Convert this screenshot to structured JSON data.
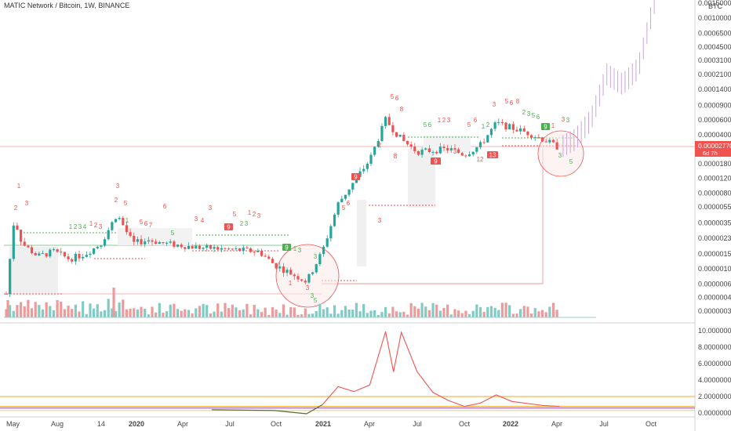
{
  "header": {
    "symbol_title": "MATIC Network / Bitcoin, 1W, BINANCE",
    "currency": "BTC"
  },
  "price_tag": {
    "value": "0.00002770",
    "countdown": "6d 7h"
  },
  "colors": {
    "up": "#26a69a",
    "down": "#ef5350",
    "projection": "#c9a6e0",
    "setup_buy": "#4caf50",
    "setup_sell": "#ef5350",
    "price_tag_bg": "#ef5350"
  },
  "chart_data": [
    {
      "type": "candlestick",
      "title": "MATIC Network / Bitcoin, 1W, BINANCE",
      "y_scale": "log",
      "y_ticks": [
        "0.00150000",
        "0.00100000",
        "0.00065000",
        "0.00045000",
        "0.00031000",
        "0.00021000",
        "0.00014000",
        "0.00009000",
        "0.00006000",
        "0.00004000",
        "0.00002770",
        "0.00001800",
        "0.00001200",
        "0.00000800",
        "0.00000550",
        "0.00000350",
        "0.00000230",
        "0.00000150",
        "0.00000100",
        "0.00000065",
        "0.00000045",
        "0.00000031"
      ],
      "x_ticks": [
        "May",
        "Aug",
        "14",
        "2020",
        "Apr",
        "Jul",
        "Oct",
        "2021",
        "Apr",
        "Jul",
        "Oct",
        "2022",
        "Apr",
        "Jul",
        "Oct"
      ],
      "close_series": [
        {
          "t": "2019-05",
          "close": 5e-07
        },
        {
          "t": "2019-05b",
          "close": 4e-06
        },
        {
          "t": "2019-06",
          "close": 2e-06
        },
        {
          "t": "2019-07",
          "close": 1.4e-06
        },
        {
          "t": "2019-08",
          "close": 1.6e-06
        },
        {
          "t": "2019-09",
          "close": 1.3e-06
        },
        {
          "t": "2019-10",
          "close": 1.5e-06
        },
        {
          "t": "2019-11",
          "close": 2e-06
        },
        {
          "t": "2019-12",
          "close": 4.5e-06
        },
        {
          "t": "2020-01",
          "close": 2e-06
        },
        {
          "t": "2020-02",
          "close": 2.2e-06
        },
        {
          "t": "2020-03",
          "close": 2e-06
        },
        {
          "t": "2020-05",
          "close": 1.8e-06
        },
        {
          "t": "2020-07",
          "close": 1.7e-06
        },
        {
          "t": "2020-09",
          "close": 1.6e-06
        },
        {
          "t": "2020-10",
          "close": 1.1e-06
        },
        {
          "t": "2020-12",
          "close": 7e-07
        },
        {
          "t": "2021-01",
          "close": 1.6e-06
        },
        {
          "t": "2021-02",
          "close": 6e-06
        },
        {
          "t": "2021-03",
          "close": 1.1e-05
        },
        {
          "t": "2021-04",
          "close": 2e-05
        },
        {
          "t": "2021-05",
          "close": 6e-05
        },
        {
          "t": "2021-06",
          "close": 3.5e-05
        },
        {
          "t": "2021-07",
          "close": 2.5e-05
        },
        {
          "t": "2021-09",
          "close": 2.7e-05
        },
        {
          "t": "2021-10",
          "close": 2.3e-05
        },
        {
          "t": "2021-11",
          "close": 3e-05
        },
        {
          "t": "2021-12",
          "close": 5.5e-05
        },
        {
          "t": "2022-02",
          "close": 4.2e-05
        },
        {
          "t": "2022-03",
          "close": 3.5e-05
        },
        {
          "t": "2022-04",
          "close": 2.77e-05
        }
      ],
      "projection": {
        "color": "#c9a6e0",
        "points": [
          {
            "t": "2022-05",
            "value": 3.5e-05
          },
          {
            "t": "2022-06",
            "value": 6e-05
          },
          {
            "t": "2022-07",
            "value": 0.00021
          },
          {
            "t": "2022-08",
            "value": 0.00016
          },
          {
            "t": "2022-09",
            "value": 0.00025
          },
          {
            "t": "2022-10",
            "value": 0.0015
          }
        ]
      },
      "td_setup_labels": {
        "boxed_red": [
          "9",
          "9",
          "9",
          "13"
        ],
        "boxed_green": [
          "9",
          "9"
        ]
      }
    },
    {
      "type": "line",
      "title": "",
      "y_ticks": [
        "10.00000000",
        "8.00000000",
        "6.00000000",
        "4.00000000",
        "2.00000000",
        "0.00000000"
      ],
      "ylim": [
        0,
        10
      ],
      "series": [
        {
          "values": [
            {
              "t": "2020-06",
              "v": 0.4
            },
            {
              "t": "2020-10",
              "v": 0.3
            },
            {
              "t": "2020-12",
              "v": -0.1
            },
            {
              "t": "2021-01",
              "v": 1.0
            },
            {
              "t": "2021-02",
              "v": 3.2
            },
            {
              "t": "2021-03",
              "v": 2.6
            },
            {
              "t": "2021-04",
              "v": 3.4
            },
            {
              "t": "2021-05",
              "v": 9.9
            },
            {
              "t": "2021-05b",
              "v": 5.0
            },
            {
              "t": "2021-06",
              "v": 9.8
            },
            {
              "t": "2021-07",
              "v": 5.0
            },
            {
              "t": "2021-08",
              "v": 2.5
            },
            {
              "t": "2021-09",
              "v": 1.5
            },
            {
              "t": "2021-10",
              "v": 0.8
            },
            {
              "t": "2021-11",
              "v": 1.2
            },
            {
              "t": "2021-12",
              "v": 2.2
            },
            {
              "t": "2022-01",
              "v": 1.4
            },
            {
              "t": "2022-03",
              "v": 0.9
            },
            {
              "t": "2022-04",
              "v": 0.8
            }
          ]
        }
      ],
      "reference_lines": [
        2.0,
        0.8,
        0.6
      ]
    }
  ]
}
